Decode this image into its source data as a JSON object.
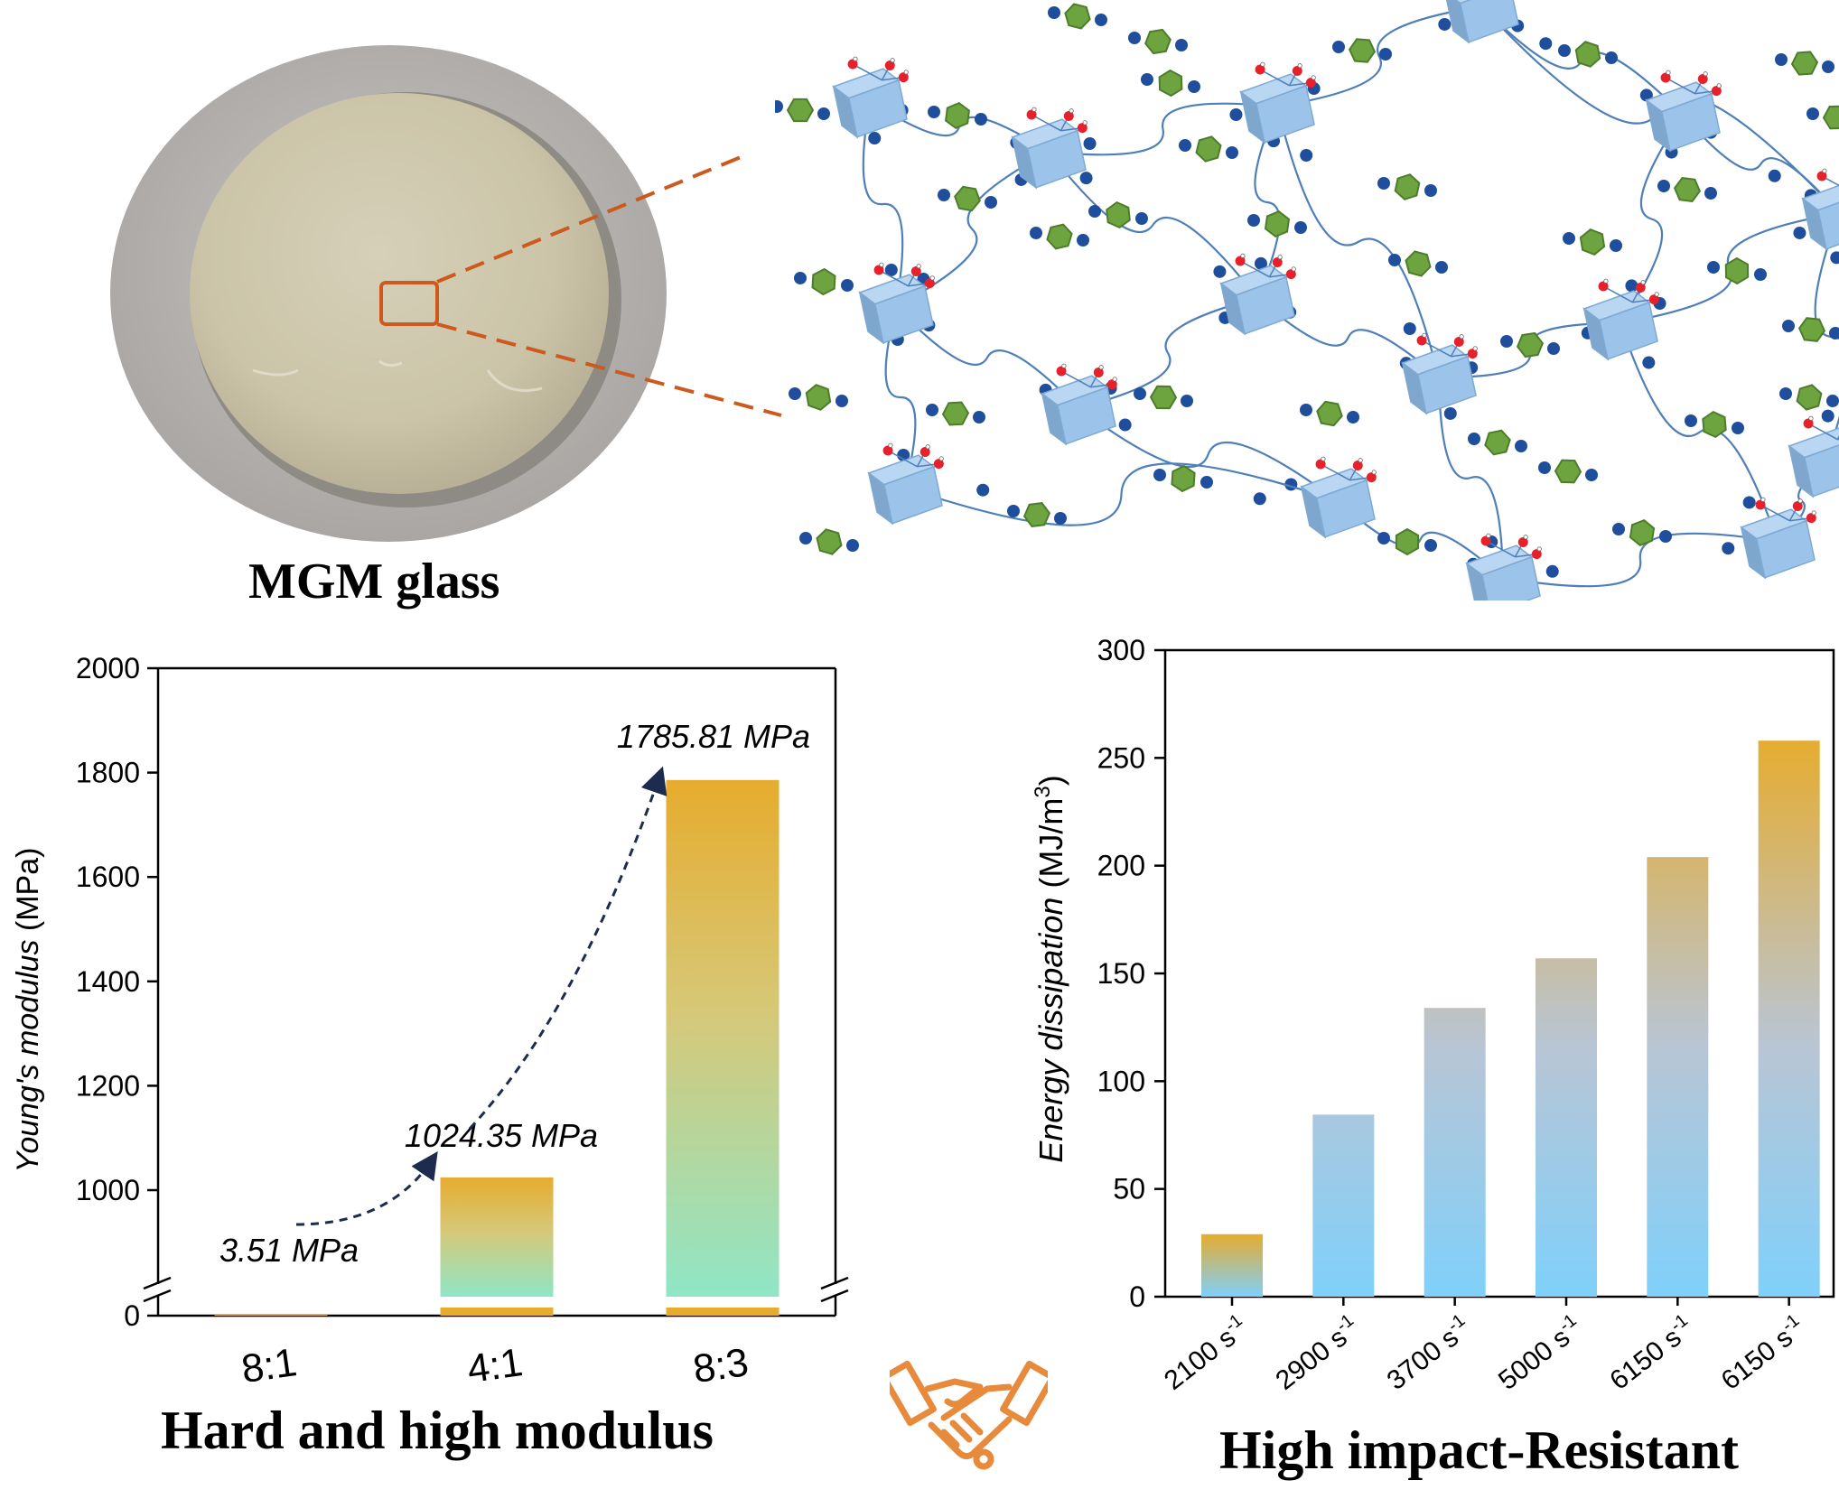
{
  "photo": {
    "caption": "MGM glass"
  },
  "network": {
    "colors": {
      "cube": "#9cc3ea",
      "benzene": "#6ea440",
      "linker": "#1f4e9c",
      "hydroxyl": "#e8202a",
      "chain": "#4f7fb8"
    }
  },
  "colors": {
    "accent": "#cc5a1e",
    "bar_top": "#e6ac2e",
    "bar_green": "#8fe6c6",
    "bar_blue": "#7fd0fb",
    "arrow": "#1d2b4f"
  },
  "chart_data": [
    {
      "type": "bar",
      "caption": "Hard and high modulus",
      "categories": [
        "8:1",
        "4:1",
        "8:3"
      ],
      "values": [
        3.51,
        1024.35,
        1785.81
      ],
      "value_labels": [
        "3.51 MPa",
        "1024.35 MPa",
        "1785.81 MPa"
      ],
      "title": "",
      "xlabel": "",
      "ylabel": {
        "italic": "Young's modulus",
        "unit": " (MPa)"
      },
      "ylim": [
        0,
        2000
      ],
      "axis_break": true,
      "yticks": [
        "0",
        "1000",
        "1200",
        "1400",
        "1600",
        "1800",
        "2000"
      ],
      "grid": false
    },
    {
      "type": "bar",
      "caption": "High impact-Resistant",
      "categories": [
        "2100 s",
        "2900 s",
        "3700 s",
        "5000 s",
        "6150 s",
        "6150 s"
      ],
      "category_superscript": "-1",
      "values": [
        29,
        84.5,
        134,
        157,
        204,
        258
      ],
      "title": "",
      "xlabel": "",
      "ylabel": {
        "italic": "Energy dissipation",
        "unit": " (MJ/m",
        "sup": "3",
        "close": ")"
      },
      "ylim": [
        0,
        300
      ],
      "yticks": [
        "0",
        "50",
        "100",
        "150",
        "200",
        "250",
        "300"
      ],
      "grid": false
    }
  ]
}
